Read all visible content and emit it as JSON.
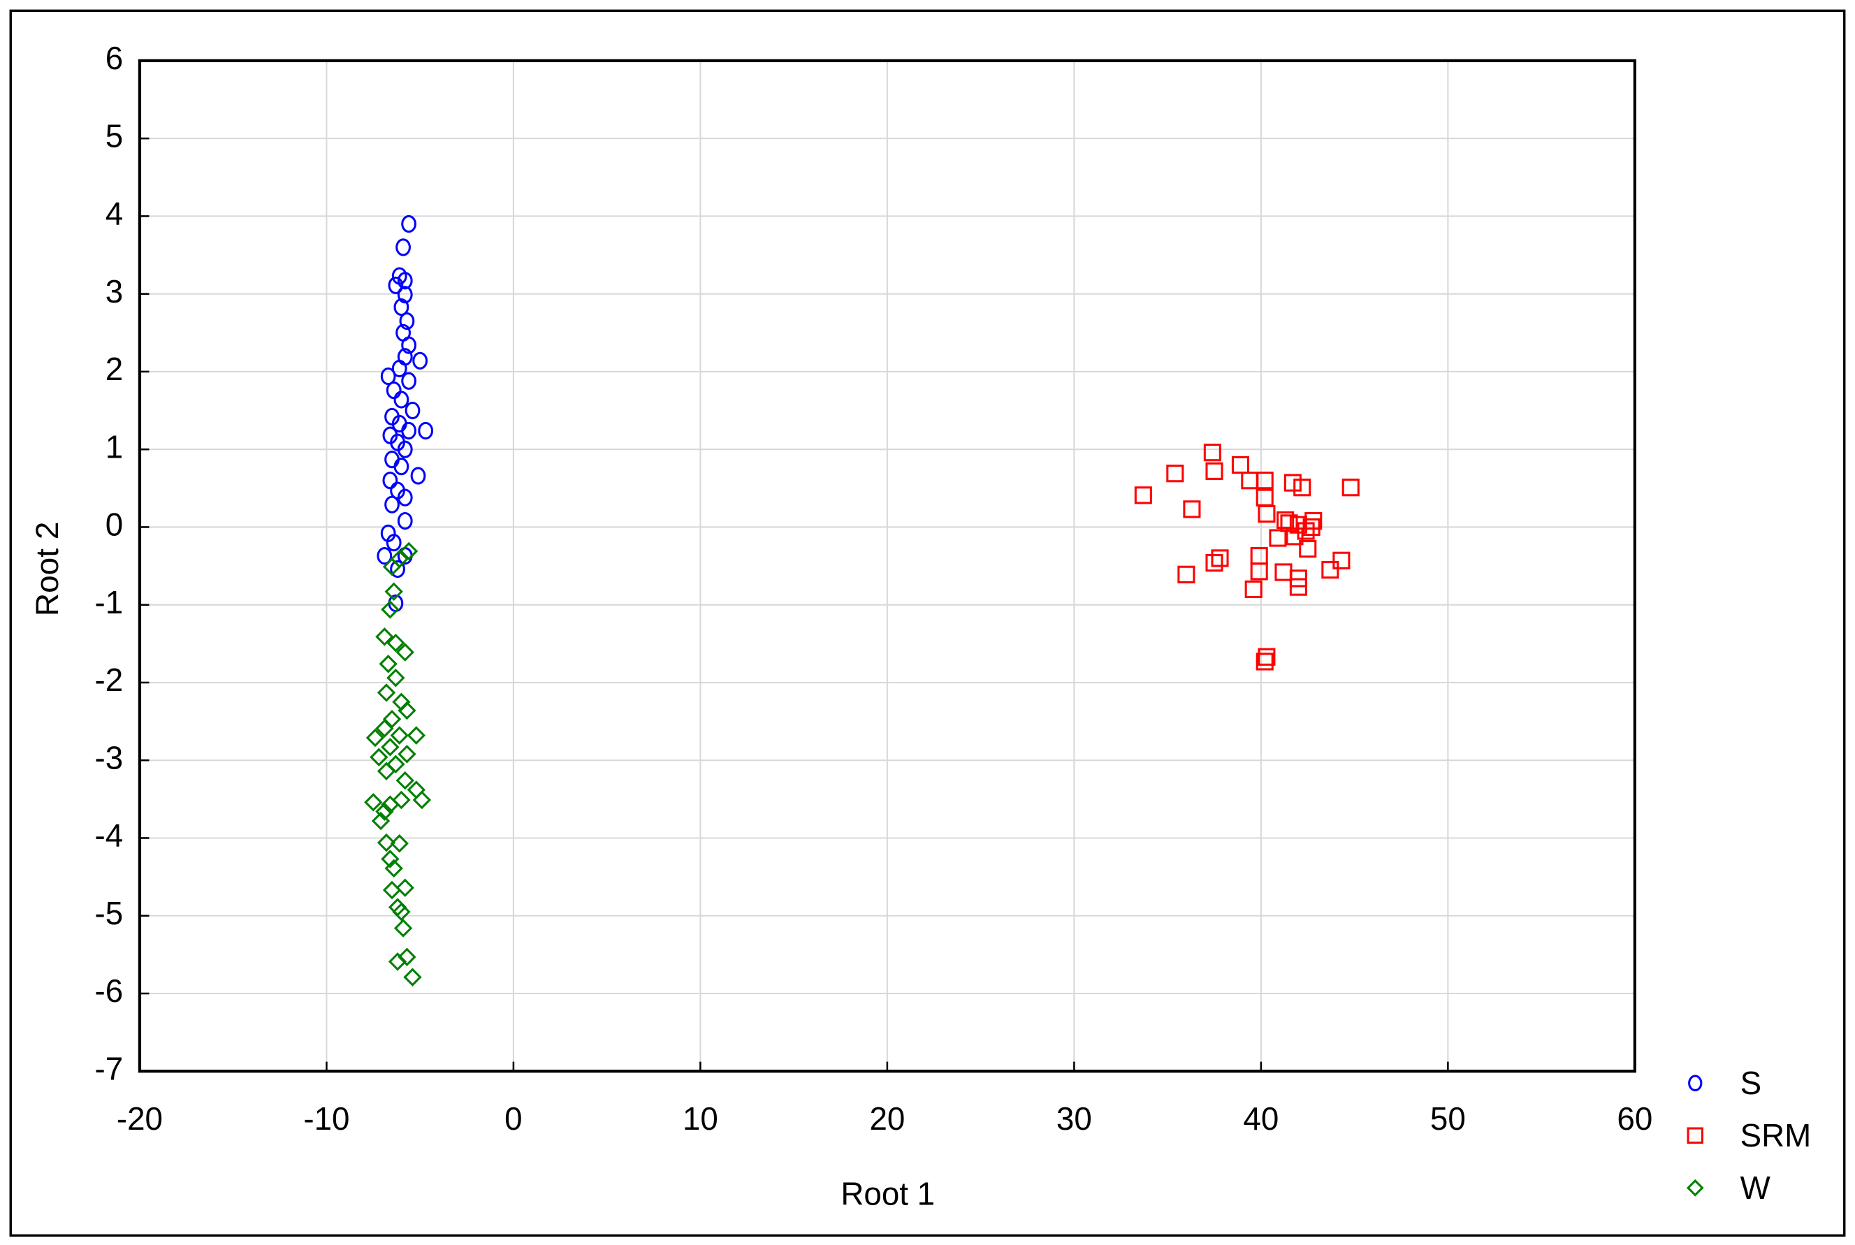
{
  "chart_data": {
    "type": "scatter",
    "xlabel": "Root 1",
    "ylabel": "Root 2",
    "xlim": [
      -20,
      60
    ],
    "ylim": [
      -7,
      6
    ],
    "xticks": [
      -20,
      -10,
      0,
      10,
      20,
      30,
      40,
      50,
      60
    ],
    "yticks": [
      -7,
      -6,
      -5,
      -4,
      -3,
      -2,
      -1,
      0,
      1,
      2,
      3,
      4,
      5,
      6
    ],
    "grid": true,
    "legend": "outside-bottom-right",
    "series": [
      {
        "name": "S",
        "color": "#0000ff",
        "marker": "circle",
        "x": [
          -5.6,
          -5.9,
          -6.1,
          -5.8,
          -6.3,
          -5.8,
          -6.0,
          -5.7,
          -5.9,
          -5.6,
          -5.8,
          -5.0,
          -6.1,
          -6.7,
          -5.6,
          -6.4,
          -6.0,
          -5.4,
          -6.5,
          -6.1,
          -5.6,
          -4.7,
          -6.6,
          -6.2,
          -5.8,
          -6.5,
          -6.0,
          -5.1,
          -6.6,
          -6.2,
          -5.8,
          -6.5,
          -5.8,
          -6.7,
          -6.4,
          -6.9,
          -5.8,
          -6.2,
          -6.3
        ],
        "values": [
          3.9,
          3.6,
          3.23,
          3.17,
          3.11,
          2.99,
          2.83,
          2.65,
          2.5,
          2.34,
          2.19,
          2.14,
          2.04,
          1.94,
          1.88,
          1.76,
          1.64,
          1.5,
          1.42,
          1.33,
          1.24,
          1.24,
          1.18,
          1.09,
          1.0,
          0.87,
          0.78,
          0.66,
          0.6,
          0.47,
          0.38,
          0.29,
          0.08,
          -0.08,
          -0.2,
          -0.37,
          -0.37,
          -0.54,
          -0.98
        ]
      },
      {
        "name": "SRM",
        "color": "#ff0000",
        "marker": "square",
        "x": [
          33.7,
          35.4,
          37.4,
          37.5,
          38.9,
          39.4,
          40.2,
          40.2,
          40.3,
          41.7,
          42.2,
          44.8,
          36.3,
          41.3,
          41.5,
          42.0,
          42.8,
          42.7,
          40.9,
          41.8,
          42.5,
          39.9,
          37.8,
          37.5,
          39.9,
          41.2,
          43.7,
          44.3,
          36.0,
          42.0,
          42.0,
          39.6,
          40.2,
          40.3,
          42.4
        ],
        "values": [
          0.41,
          0.69,
          0.96,
          0.72,
          0.8,
          0.6,
          0.6,
          0.38,
          0.17,
          0.57,
          0.51,
          0.51,
          0.23,
          0.09,
          0.05,
          0.03,
          0.08,
          0.0,
          -0.14,
          -0.12,
          -0.28,
          -0.37,
          -0.4,
          -0.46,
          -0.57,
          -0.58,
          -0.55,
          -0.43,
          -0.61,
          -0.66,
          -0.77,
          -0.8,
          -1.73,
          -1.67,
          -0.05
        ]
      },
      {
        "name": "W",
        "color": "#008000",
        "marker": "diamond",
        "x": [
          -5.6,
          -6.1,
          -6.5,
          -6.4,
          -6.6,
          -6.9,
          -6.3,
          -5.8,
          -6.7,
          -6.3,
          -6.8,
          -6.0,
          -5.7,
          -6.5,
          -6.9,
          -6.1,
          -5.2,
          -7.4,
          -6.6,
          -5.7,
          -7.2,
          -6.3,
          -6.8,
          -5.8,
          -5.2,
          -4.9,
          -7.5,
          -6.6,
          -6.0,
          -6.9,
          -7.1,
          -6.1,
          -6.8,
          -6.6,
          -6.4,
          -5.8,
          -6.5,
          -6.2,
          -6.0,
          -5.9,
          -5.7,
          -6.2,
          -5.4
        ],
        "values": [
          -0.31,
          -0.41,
          -0.51,
          -0.83,
          -1.06,
          -1.41,
          -1.49,
          -1.61,
          -1.76,
          -1.94,
          -2.13,
          -2.25,
          -2.36,
          -2.47,
          -2.59,
          -2.68,
          -2.68,
          -2.71,
          -2.83,
          -2.92,
          -2.96,
          -3.05,
          -3.14,
          -3.26,
          -3.38,
          -3.51,
          -3.54,
          -3.57,
          -3.51,
          -3.66,
          -3.78,
          -4.07,
          -4.06,
          -4.27,
          -4.39,
          -4.64,
          -4.67,
          -4.89,
          -4.95,
          -5.16,
          -5.53,
          -5.59,
          -5.79
        ]
      }
    ]
  }
}
